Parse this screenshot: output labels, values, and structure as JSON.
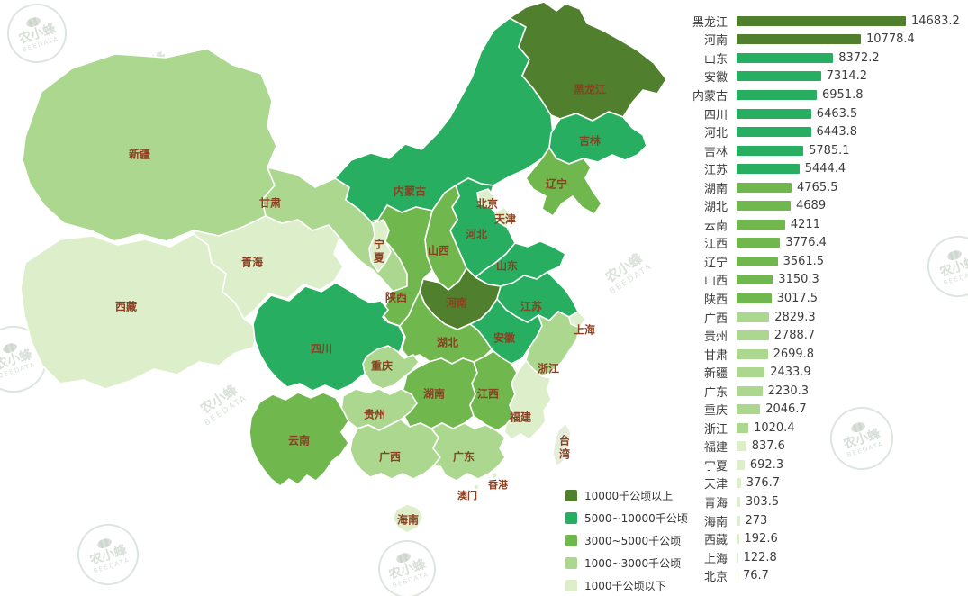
{
  "watermark": {
    "cn": "农小蜂",
    "en": "BEEDATA"
  },
  "palette": {
    "cat1": "#507f2d",
    "cat2": "#27ae60",
    "cat3": "#70b74e",
    "cat4": "#abd78e",
    "cat5": "#ddeecb",
    "nodata": "#e4eedb",
    "map_label": "#8b4021",
    "border": "#ffffff"
  },
  "legend": {
    "position": "bottom-center",
    "items": [
      {
        "label": "10000千公顷以上",
        "min": 10000,
        "color": "#507f2d"
      },
      {
        "label": "5000~10000千公顷",
        "min": 5000,
        "color": "#27ae60"
      },
      {
        "label": "3000~5000千公顷",
        "min": 3000,
        "color": "#70b74e"
      },
      {
        "label": "1000~3000千公顷",
        "min": 1000,
        "color": "#abd78e"
      },
      {
        "label": "1000千公顷以下",
        "min": 0,
        "color": "#ddeecb"
      }
    ]
  },
  "chart_data": {
    "type": "bar",
    "orientation": "horizontal",
    "unit": "千公顷",
    "xlim": [
      0,
      14683.2
    ],
    "grid": false,
    "categories": [
      "黑龙江",
      "河南",
      "山东",
      "安徽",
      "内蒙古",
      "四川",
      "河北",
      "吉林",
      "江苏",
      "湖南",
      "湖北",
      "云南",
      "江西",
      "辽宁",
      "山西",
      "陕西",
      "广西",
      "贵州",
      "甘肃",
      "新疆",
      "广东",
      "重庆",
      "浙江",
      "福建",
      "宁夏",
      "天津",
      "青海",
      "海南",
      "西藏",
      "上海",
      "北京"
    ],
    "values": [
      14683.2,
      10778.4,
      8372.2,
      7314.2,
      6951.8,
      6463.5,
      6443.8,
      5785.1,
      5444.4,
      4765.5,
      4689,
      4211,
      3776.4,
      3561.5,
      3150.3,
      3017.5,
      2829.3,
      2788.7,
      2699.8,
      2433.9,
      2230.3,
      2046.7,
      1020.4,
      837.6,
      692.3,
      376.7,
      303.5,
      273,
      192.6,
      122.8,
      76.7
    ]
  },
  "map": {
    "provinces": [
      {
        "id": "xinjiang",
        "name": "新疆"
      },
      {
        "id": "xizang",
        "name": "西藏"
      },
      {
        "id": "qinghai",
        "name": "青海"
      },
      {
        "id": "gansu",
        "name": "甘肃"
      },
      {
        "id": "neimenggu",
        "name": "内蒙古"
      },
      {
        "id": "heilongjiang",
        "name": "黑龙江"
      },
      {
        "id": "jilin",
        "name": "吉林"
      },
      {
        "id": "liaoning",
        "name": "辽宁"
      },
      {
        "id": "hebei",
        "name": "河北"
      },
      {
        "id": "shanxi",
        "name": "山西"
      },
      {
        "id": "shaanxi",
        "name": "陕西"
      },
      {
        "id": "ningxia",
        "name": "宁夏"
      },
      {
        "id": "shandong",
        "name": "山东"
      },
      {
        "id": "henan",
        "name": "河南"
      },
      {
        "id": "jiangsu",
        "name": "江苏"
      },
      {
        "id": "anhui",
        "name": "安徽"
      },
      {
        "id": "hubei",
        "name": "湖北"
      },
      {
        "id": "sichuan",
        "name": "四川"
      },
      {
        "id": "chongqing",
        "name": "重庆"
      },
      {
        "id": "shanghai",
        "name": "上海"
      },
      {
        "id": "zhejiang",
        "name": "浙江"
      },
      {
        "id": "hunan",
        "name": "湖南"
      },
      {
        "id": "jiangxi",
        "name": "江西"
      },
      {
        "id": "guizhou",
        "name": "贵州"
      },
      {
        "id": "yunnan",
        "name": "云南"
      },
      {
        "id": "fujian",
        "name": "福建"
      },
      {
        "id": "guangxi",
        "name": "广西"
      },
      {
        "id": "guangdong",
        "name": "广东"
      },
      {
        "id": "taiwan",
        "name": "台湾"
      },
      {
        "id": "hainan",
        "name": "海南"
      },
      {
        "id": "beijing",
        "name": "北京"
      },
      {
        "id": "tianjin",
        "name": "天津"
      }
    ],
    "extra_labels": [
      {
        "id": "hongkong",
        "name": "香港"
      },
      {
        "id": "macau",
        "name": "澳门"
      }
    ]
  }
}
